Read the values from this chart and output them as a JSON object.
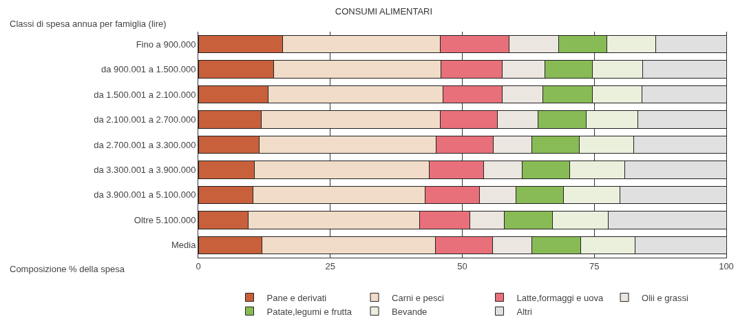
{
  "chart_data": {
    "type": "bar",
    "orientation": "horizontal",
    "stacked": true,
    "title": "CONSUMI ALIMENTARI",
    "ylabel": "Classi di spesa annua per famiglia (lire)",
    "xlabel": "Composizione % della spesa",
    "categories": [
      "Fino a 900.000",
      "da 900.001 a 1.500.000",
      "da 1.500.001 a 2.100.000",
      "da 2.100.001 a 2.700.000",
      "da 2.700.001 a 3.300.000",
      "da 3.300.001 a 3.900.000",
      "da 3.900.001 a 5.100.000",
      "Oltre 5.100.000",
      "Media"
    ],
    "series": [
      {
        "name": "Pane e derivati",
        "color": "#c8603c",
        "values": [
          16.0,
          14.3,
          13.2,
          11.9,
          11.5,
          10.6,
          10.4,
          9.4,
          12.0
        ]
      },
      {
        "name": "Carni e pesci",
        "color": "#f0dcc8",
        "values": [
          29.8,
          31.6,
          33.1,
          33.9,
          33.5,
          33.1,
          32.6,
          32.5,
          32.9
        ]
      },
      {
        "name": "Latte,formaggi e uova",
        "color": "#e8707a",
        "values": [
          13.0,
          11.6,
          11.3,
          10.8,
          10.9,
          10.4,
          10.2,
          9.5,
          10.8
        ]
      },
      {
        "name": "Olii e grassi",
        "color": "#ece6e0",
        "values": [
          9.5,
          8.1,
          7.7,
          7.8,
          7.3,
          7.2,
          7.0,
          6.5,
          7.5
        ]
      },
      {
        "name": "Patate,legumi e frutta",
        "color": "#88bb55",
        "values": [
          9.1,
          9.0,
          9.4,
          9.1,
          9.0,
          9.0,
          9.0,
          9.2,
          9.2
        ]
      },
      {
        "name": "Bevande",
        "color": "#eaf0dc",
        "values": [
          9.3,
          9.5,
          9.3,
          9.8,
          10.3,
          10.5,
          10.7,
          10.5,
          10.3
        ]
      },
      {
        "name": "Altri",
        "color": "#e0e0e0",
        "values": [
          13.3,
          15.9,
          16.0,
          16.7,
          17.5,
          19.2,
          20.1,
          22.4,
          17.3
        ]
      }
    ],
    "xlim": [
      0,
      100
    ],
    "xticks": [
      0,
      25,
      50,
      75,
      100
    ],
    "grid": "x",
    "legend": "bottom"
  }
}
